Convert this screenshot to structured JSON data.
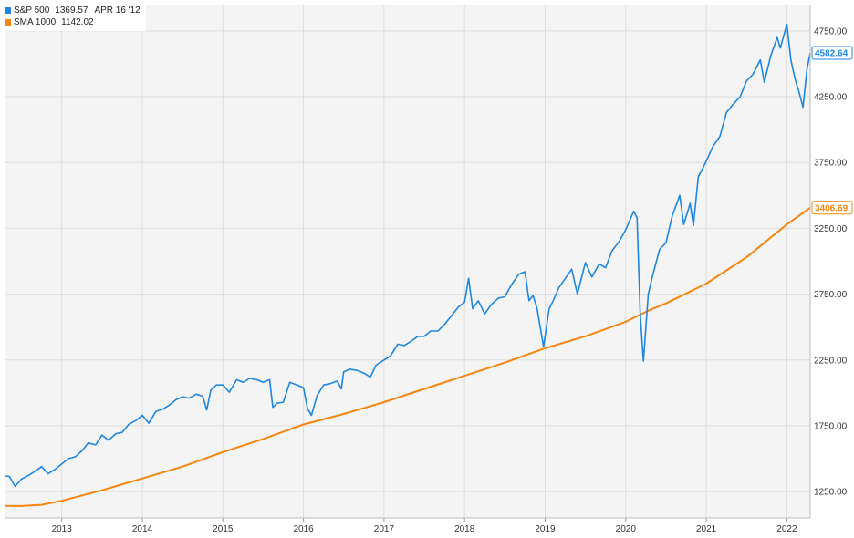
{
  "legend": {
    "sp_name": "S&P 500",
    "sp_value": "1369.57",
    "sp_date": "APR 16 '12",
    "sma_name": "SMA 1000",
    "sma_value": "1142.02"
  },
  "colors": {
    "sp500": "#1f86e0",
    "sma": "#f5850f",
    "plot_bg": "#f4f4f4",
    "grid": "#dddddd"
  },
  "chart_data": {
    "type": "line",
    "grid": true,
    "legend_position": "top-left",
    "y_axis_position": "right",
    "ylim": [
      1050,
      4950
    ],
    "xlim": [
      2012.29,
      2022.29
    ],
    "y_ticks": [
      1250,
      1750,
      2250,
      2750,
      3250,
      3750,
      4250,
      4750
    ],
    "y_tick_labels": [
      "1250.00",
      "1750.00",
      "2250.00",
      "2750.00",
      "3250.00",
      "3750.00",
      "4250.00",
      "4750.00"
    ],
    "x_ticks": [
      2013,
      2014,
      2015,
      2016,
      2017,
      2018,
      2019,
      2020,
      2021,
      2022
    ],
    "x_tick_labels": [
      "2013",
      "2014",
      "2015",
      "2016",
      "2017",
      "2018",
      "2019",
      "2020",
      "2021",
      "2022"
    ],
    "series": [
      {
        "name": "S&P 500",
        "last_value_label": "4582.64",
        "points": [
          [
            2012.29,
            1369.57
          ],
          [
            2012.35,
            1365
          ],
          [
            2012.42,
            1290
          ],
          [
            2012.5,
            1345
          ],
          [
            2012.58,
            1370
          ],
          [
            2012.67,
            1405
          ],
          [
            2012.75,
            1440
          ],
          [
            2012.83,
            1385
          ],
          [
            2012.92,
            1420
          ],
          [
            2013.0,
            1460
          ],
          [
            2013.08,
            1500
          ],
          [
            2013.17,
            1515
          ],
          [
            2013.25,
            1560
          ],
          [
            2013.33,
            1620
          ],
          [
            2013.42,
            1605
          ],
          [
            2013.5,
            1680
          ],
          [
            2013.58,
            1640
          ],
          [
            2013.67,
            1690
          ],
          [
            2013.75,
            1700
          ],
          [
            2013.83,
            1760
          ],
          [
            2013.92,
            1790
          ],
          [
            2014.0,
            1830
          ],
          [
            2014.08,
            1770
          ],
          [
            2014.17,
            1860
          ],
          [
            2014.25,
            1875
          ],
          [
            2014.33,
            1905
          ],
          [
            2014.42,
            1950
          ],
          [
            2014.5,
            1970
          ],
          [
            2014.58,
            1960
          ],
          [
            2014.67,
            1990
          ],
          [
            2014.75,
            1975
          ],
          [
            2014.8,
            1870
          ],
          [
            2014.85,
            2020
          ],
          [
            2014.92,
            2060
          ],
          [
            2015.0,
            2060
          ],
          [
            2015.08,
            2005
          ],
          [
            2015.17,
            2100
          ],
          [
            2015.25,
            2080
          ],
          [
            2015.33,
            2110
          ],
          [
            2015.42,
            2100
          ],
          [
            2015.5,
            2080
          ],
          [
            2015.58,
            2100
          ],
          [
            2015.62,
            1890
          ],
          [
            2015.67,
            1920
          ],
          [
            2015.75,
            1930
          ],
          [
            2015.83,
            2080
          ],
          [
            2015.92,
            2060
          ],
          [
            2016.0,
            2040
          ],
          [
            2016.05,
            1880
          ],
          [
            2016.1,
            1830
          ],
          [
            2016.17,
            1980
          ],
          [
            2016.25,
            2060
          ],
          [
            2016.33,
            2070
          ],
          [
            2016.42,
            2090
          ],
          [
            2016.47,
            2030
          ],
          [
            2016.5,
            2160
          ],
          [
            2016.58,
            2180
          ],
          [
            2016.67,
            2170
          ],
          [
            2016.75,
            2150
          ],
          [
            2016.83,
            2120
          ],
          [
            2016.9,
            2210
          ],
          [
            2017.0,
            2250
          ],
          [
            2017.08,
            2280
          ],
          [
            2017.17,
            2370
          ],
          [
            2017.25,
            2360
          ],
          [
            2017.33,
            2390
          ],
          [
            2017.42,
            2430
          ],
          [
            2017.5,
            2430
          ],
          [
            2017.58,
            2470
          ],
          [
            2017.67,
            2470
          ],
          [
            2017.75,
            2520
          ],
          [
            2017.83,
            2580
          ],
          [
            2017.92,
            2650
          ],
          [
            2018.0,
            2690
          ],
          [
            2018.05,
            2870
          ],
          [
            2018.1,
            2640
          ],
          [
            2018.17,
            2700
          ],
          [
            2018.25,
            2600
          ],
          [
            2018.33,
            2670
          ],
          [
            2018.42,
            2720
          ],
          [
            2018.5,
            2730
          ],
          [
            2018.58,
            2820
          ],
          [
            2018.67,
            2900
          ],
          [
            2018.75,
            2920
          ],
          [
            2018.8,
            2700
          ],
          [
            2018.85,
            2740
          ],
          [
            2018.9,
            2640
          ],
          [
            2018.98,
            2350
          ],
          [
            2019.05,
            2640
          ],
          [
            2019.1,
            2700
          ],
          [
            2019.17,
            2800
          ],
          [
            2019.25,
            2870
          ],
          [
            2019.33,
            2940
          ],
          [
            2019.4,
            2750
          ],
          [
            2019.5,
            2990
          ],
          [
            2019.58,
            2880
          ],
          [
            2019.67,
            2980
          ],
          [
            2019.75,
            2950
          ],
          [
            2019.83,
            3080
          ],
          [
            2019.92,
            3150
          ],
          [
            2020.0,
            3240
          ],
          [
            2020.1,
            3380
          ],
          [
            2020.14,
            3330
          ],
          [
            2020.18,
            2600
          ],
          [
            2020.22,
            2240
          ],
          [
            2020.28,
            2750
          ],
          [
            2020.33,
            2880
          ],
          [
            2020.42,
            3090
          ],
          [
            2020.5,
            3140
          ],
          [
            2020.58,
            3350
          ],
          [
            2020.67,
            3500
          ],
          [
            2020.72,
            3280
          ],
          [
            2020.8,
            3440
          ],
          [
            2020.84,
            3270
          ],
          [
            2020.9,
            3640
          ],
          [
            2021.0,
            3760
          ],
          [
            2021.08,
            3870
          ],
          [
            2021.17,
            3950
          ],
          [
            2021.25,
            4130
          ],
          [
            2021.33,
            4190
          ],
          [
            2021.42,
            4250
          ],
          [
            2021.5,
            4370
          ],
          [
            2021.58,
            4420
          ],
          [
            2021.67,
            4530
          ],
          [
            2021.72,
            4360
          ],
          [
            2021.8,
            4560
          ],
          [
            2021.88,
            4700
          ],
          [
            2021.92,
            4620
          ],
          [
            2022.0,
            4800
          ],
          [
            2022.05,
            4530
          ],
          [
            2022.1,
            4390
          ],
          [
            2022.15,
            4290
          ],
          [
            2022.2,
            4170
          ],
          [
            2022.25,
            4460
          ],
          [
            2022.29,
            4582.64
          ]
        ]
      },
      {
        "name": "SMA 1000",
        "last_value_label": "3406.69",
        "points": [
          [
            2012.29,
            1142.02
          ],
          [
            2012.5,
            1141
          ],
          [
            2012.75,
            1150
          ],
          [
            2013.0,
            1180
          ],
          [
            2013.5,
            1260
          ],
          [
            2014.0,
            1350
          ],
          [
            2014.5,
            1440
          ],
          [
            2015.0,
            1550
          ],
          [
            2015.5,
            1650
          ],
          [
            2016.0,
            1760
          ],
          [
            2016.5,
            1840
          ],
          [
            2017.0,
            1930
          ],
          [
            2017.5,
            2030
          ],
          [
            2018.0,
            2130
          ],
          [
            2018.5,
            2230
          ],
          [
            2019.0,
            2340
          ],
          [
            2019.5,
            2430
          ],
          [
            2020.0,
            2540
          ],
          [
            2020.3,
            2630
          ],
          [
            2020.5,
            2680
          ],
          [
            2021.0,
            2830
          ],
          [
            2021.5,
            3030
          ],
          [
            2022.0,
            3280
          ],
          [
            2022.29,
            3406.69
          ]
        ]
      }
    ]
  }
}
